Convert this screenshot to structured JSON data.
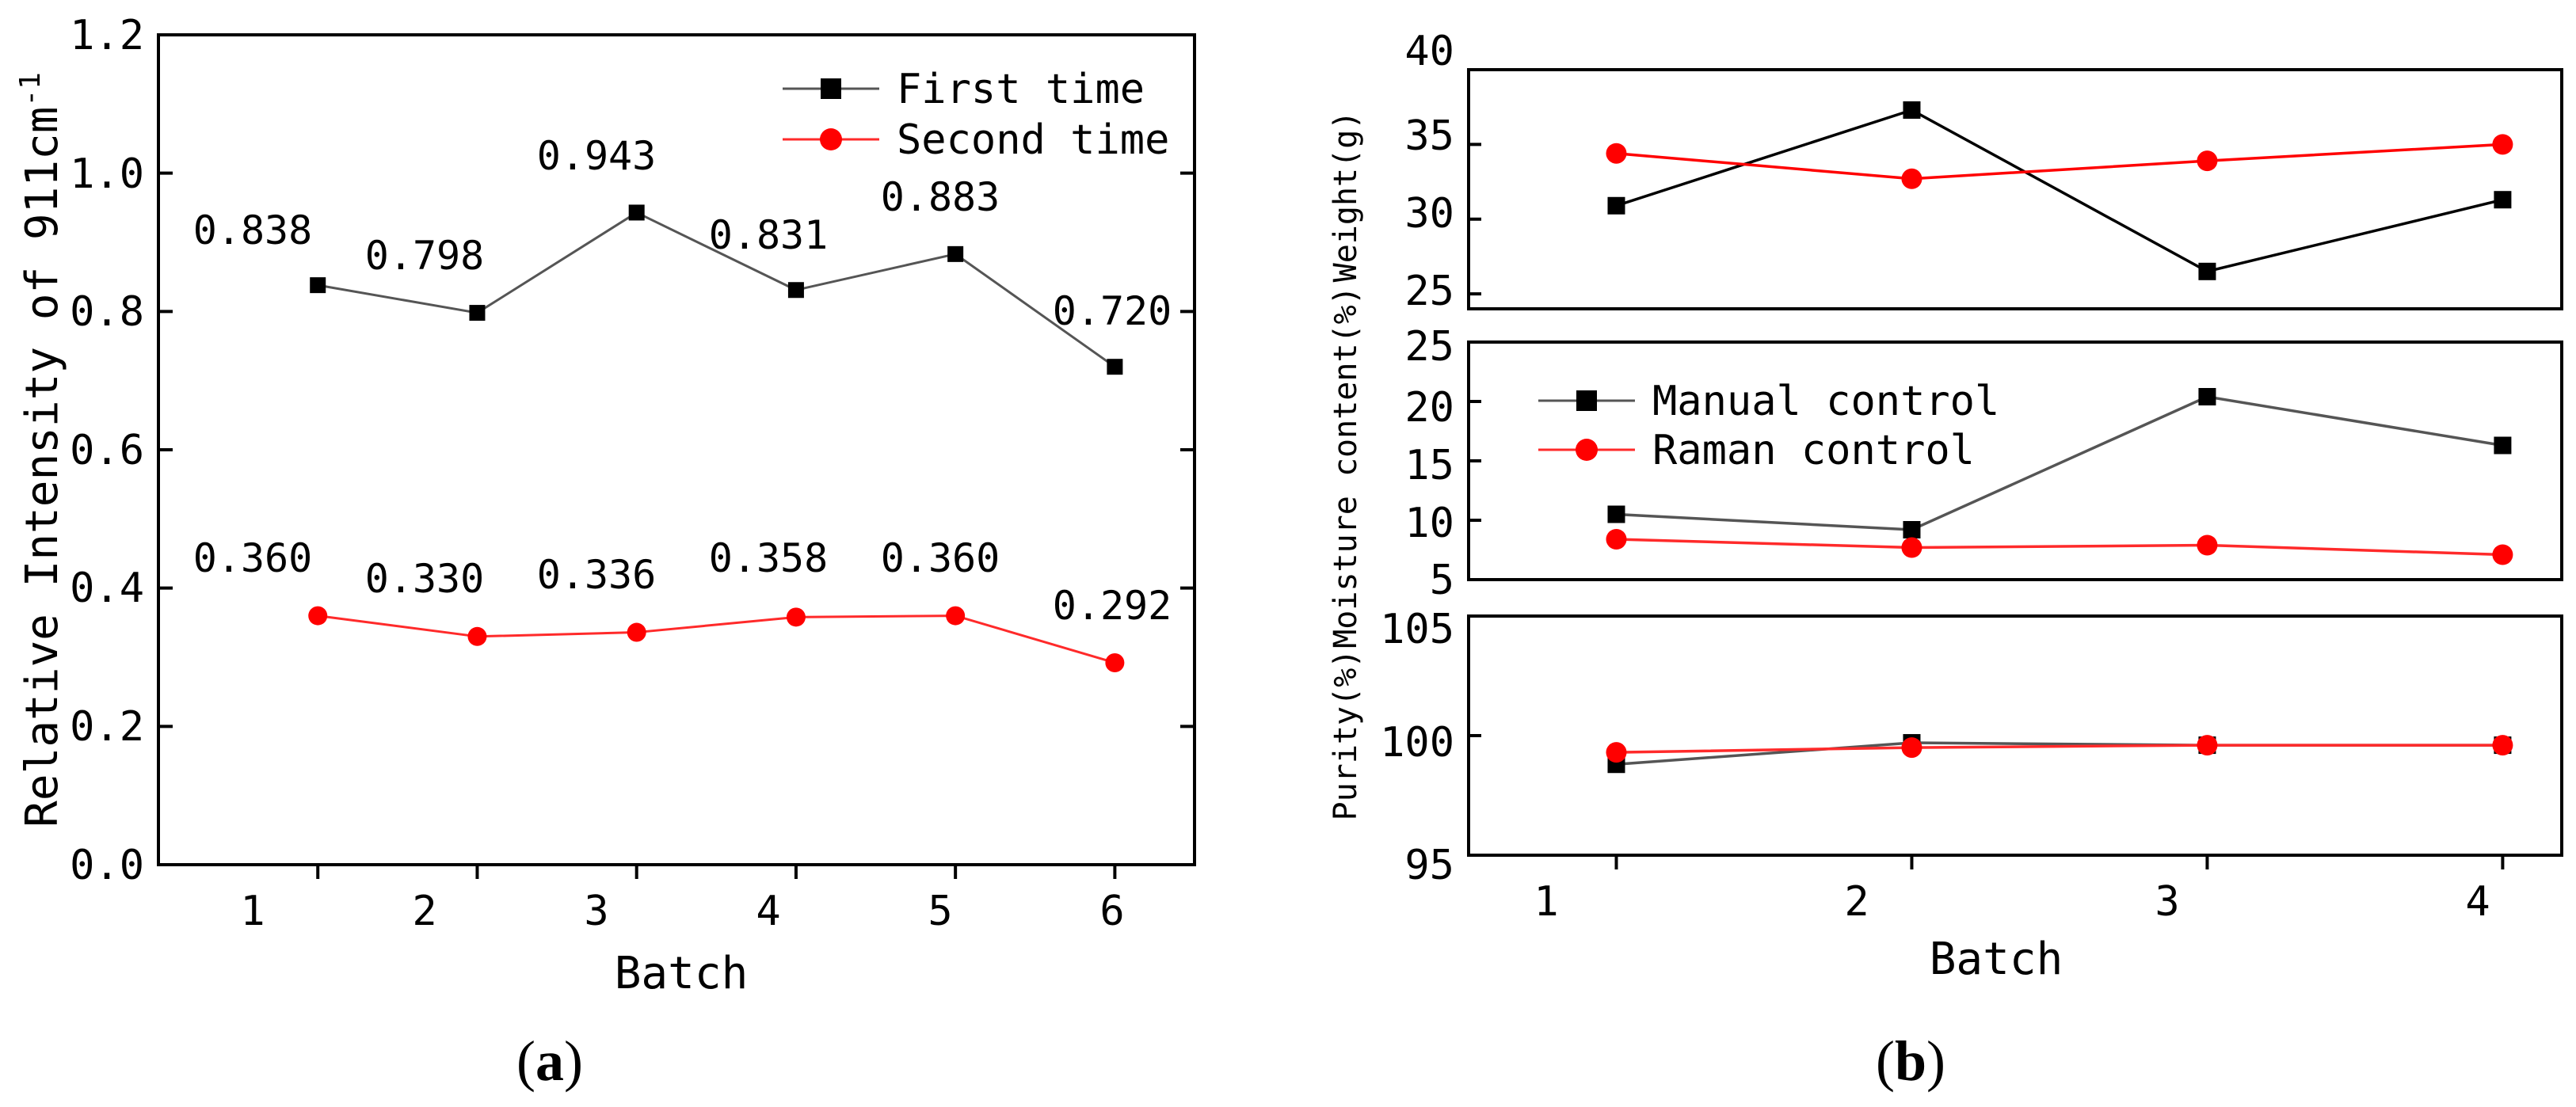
{
  "chart_data": [
    {
      "id": "a",
      "panel_label": {
        "pre": "(",
        "letter": "a",
        "post": ")"
      },
      "type": "line",
      "xlabel": "Batch",
      "ylabel": "Relative Intensity of 911cm",
      "ylabel_sup": "-1",
      "x": [
        1,
        2,
        3,
        4,
        5,
        6
      ],
      "xticks": [
        "1",
        "2",
        "3",
        "4",
        "5",
        "6"
      ],
      "xlim": [
        0.0,
        6.5
      ],
      "ylim": [
        0.0,
        1.2
      ],
      "yticks": [
        "0.0",
        "0.2",
        "0.4",
        "0.6",
        "0.8",
        "1.0",
        "1.2"
      ],
      "legend_position": "top-right",
      "series": [
        {
          "name": "First time",
          "color": "#555555",
          "marker": "square",
          "values": [
            0.838,
            0.798,
            0.943,
            0.831,
            0.883,
            0.72
          ],
          "labels": [
            "0.838",
            "0.798",
            "0.943",
            "0.831",
            "0.883",
            "0.720"
          ]
        },
        {
          "name": "Second time",
          "color": "#ff2a2a",
          "marker": "circle",
          "values": [
            0.36,
            0.33,
            0.336,
            0.358,
            0.36,
            0.292
          ],
          "labels": [
            "0.360",
            "0.330",
            "0.336",
            "0.358",
            "0.360",
            "0.292"
          ]
        }
      ]
    },
    {
      "id": "b",
      "panel_label": {
        "pre": "(",
        "letter": "b",
        "post": ")"
      },
      "type": "line",
      "xlabel": "Batch",
      "x": [
        1,
        2,
        3,
        4
      ],
      "xticks": [
        "1",
        "2",
        "3",
        "4"
      ],
      "xlim": [
        0.5,
        4.2
      ],
      "legend": [
        "Manual control",
        "Raman control"
      ],
      "legend_position": "top-left of middle panel",
      "subplots": [
        {
          "ylabel": "Weight(g)",
          "ylim": [
            24,
            40
          ],
          "yticks": [
            "25",
            "30",
            "35",
            "40"
          ],
          "series": [
            {
              "name": "Manual control",
              "color": "#000000",
              "marker": "square",
              "values": [
                30.9,
                37.3,
                26.5,
                31.3
              ]
            },
            {
              "name": "Raman control",
              "color": "#ff0000",
              "marker": "circle",
              "values": [
                34.4,
                32.7,
                33.9,
                35.0
              ]
            }
          ]
        },
        {
          "ylabel": "Moisture content(%)",
          "ylim": [
            5,
            25
          ],
          "yticks": [
            "5",
            "10",
            "15",
            "20",
            "25"
          ],
          "series": [
            {
              "name": "Manual control",
              "color": "#555555",
              "marker": "square",
              "values": [
                10.5,
                9.2,
                20.4,
                16.3
              ]
            },
            {
              "name": "Raman control",
              "color": "#ff2a2a",
              "marker": "circle",
              "values": [
                8.4,
                7.7,
                7.9,
                7.1
              ]
            }
          ]
        },
        {
          "ylabel": "Purity(%)",
          "ylim": [
            95,
            105
          ],
          "yticks": [
            "95",
            "100",
            "105"
          ],
          "series": [
            {
              "name": "Manual control",
              "color": "#555555",
              "marker": "square",
              "values": [
                98.8,
                99.7,
                99.6,
                99.6
              ]
            },
            {
              "name": "Raman control",
              "color": "#ff2a2a",
              "marker": "circle",
              "values": [
                99.3,
                99.5,
                99.6,
                99.6
              ]
            }
          ]
        }
      ]
    }
  ]
}
